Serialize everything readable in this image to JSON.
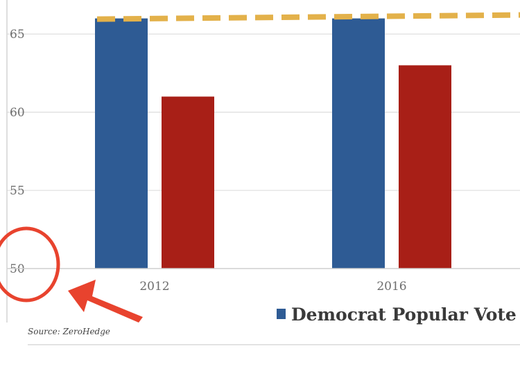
{
  "chart_data": {
    "type": "bar",
    "categories": [
      "2012",
      "2016"
    ],
    "series": [
      {
        "name": "Democrat Popular Vote",
        "color": "#2e5b94",
        "values": [
          66,
          66
        ]
      },
      {
        "color": "#a81f17",
        "values": [
          61,
          63
        ]
      }
    ],
    "reference_line": {
      "value": 66,
      "style": "dashed",
      "color": "#e3b14a"
    },
    "yticks": [
      50,
      55,
      60,
      65
    ],
    "ylim": [
      50,
      67
    ],
    "grid": true,
    "legend_position": "bottom-right"
  },
  "source": "Source: ZeroHedge",
  "annotation": {
    "circle_color": "#e8432e",
    "arrow_color": "#e8432e"
  }
}
